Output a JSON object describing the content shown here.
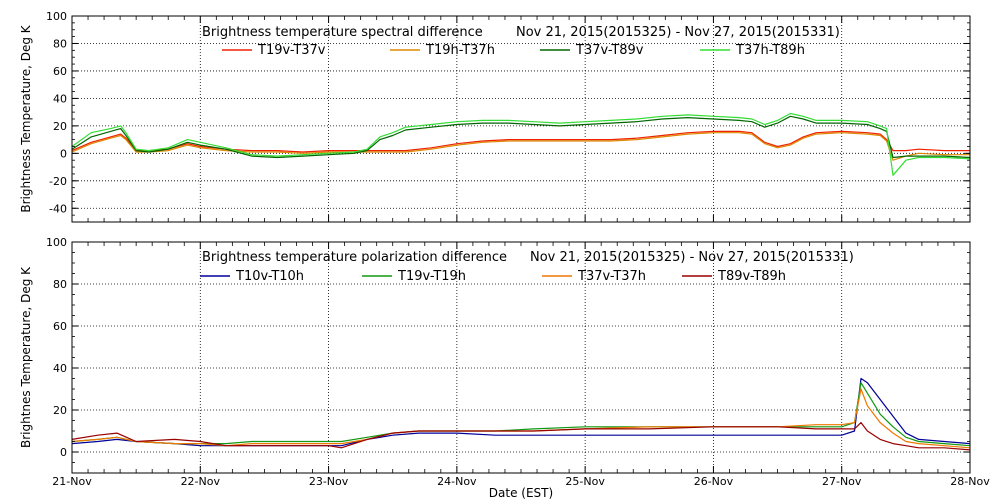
{
  "chart_data": [
    {
      "type": "line",
      "title": "Brightness temperature spectral difference",
      "date_range": "Nov 21, 2015(2015325) - Nov 27, 2015(2015331)",
      "xlabel": "",
      "ylabel": "Brightness Temperature, Deg K",
      "ylim": [
        -50,
        100
      ],
      "yticks": [
        -40,
        -20,
        0,
        20,
        40,
        60,
        80,
        100
      ],
      "xlim": [
        0,
        7
      ],
      "x_tick_positions": [
        0,
        1,
        2,
        3,
        4,
        5,
        6,
        7
      ],
      "x_tick_labels": [],
      "grid": true,
      "legend_position": "top",
      "series": [
        {
          "name": "T19v-T37v",
          "color": "#ee2200",
          "x": [
            0,
            0.15,
            0.3,
            0.38,
            0.42,
            0.5,
            0.6,
            0.75,
            0.9,
            1.0,
            1.2,
            1.4,
            1.6,
            1.8,
            2.0,
            2.2,
            2.4,
            2.6,
            2.8,
            3.0,
            3.2,
            3.4,
            3.6,
            3.8,
            4.0,
            4.2,
            4.4,
            4.6,
            4.8,
            5.0,
            5.2,
            5.3,
            5.4,
            5.5,
            5.6,
            5.7,
            5.8,
            6.0,
            6.2,
            6.3,
            6.35,
            6.4,
            6.5,
            6.6,
            6.8,
            7.0
          ],
          "y": [
            2,
            8,
            12,
            14,
            11,
            2,
            2,
            3,
            7,
            5,
            3,
            2,
            2,
            1,
            2,
            2,
            2,
            2,
            4,
            7,
            9,
            10,
            10,
            10,
            10,
            10,
            11,
            13,
            15,
            16,
            16,
            15,
            8,
            5,
            7,
            12,
            15,
            16,
            15,
            14,
            10,
            2,
            2,
            3,
            2,
            2
          ]
        },
        {
          "name": "T19h-T37h",
          "color": "#dd8800",
          "x": [
            0,
            0.15,
            0.3,
            0.38,
            0.42,
            0.5,
            0.6,
            0.75,
            0.9,
            1.0,
            1.2,
            1.4,
            1.6,
            1.8,
            2.0,
            2.2,
            2.4,
            2.6,
            2.8,
            3.0,
            3.2,
            3.4,
            3.6,
            3.8,
            4.0,
            4.2,
            4.4,
            4.6,
            4.8,
            5.0,
            5.2,
            5.3,
            5.4,
            5.5,
            5.6,
            5.7,
            5.8,
            6.0,
            6.2,
            6.3,
            6.35,
            6.4,
            6.5,
            6.6,
            6.8,
            7.0
          ],
          "y": [
            1,
            7,
            11,
            13,
            10,
            1,
            1,
            2,
            6,
            4,
            2,
            1,
            1,
            0,
            1,
            1,
            1,
            1,
            3,
            6,
            8,
            9,
            9,
            9,
            9,
            9,
            10,
            12,
            14,
            15,
            15,
            14,
            7,
            4,
            6,
            11,
            14,
            15,
            14,
            13,
            9,
            -5,
            -2,
            0,
            -1,
            -1
          ]
        },
        {
          "name": "T37v-T89v",
          "color": "#006600",
          "x": [
            0,
            0.15,
            0.3,
            0.38,
            0.42,
            0.5,
            0.6,
            0.75,
            0.9,
            1.0,
            1.2,
            1.4,
            1.6,
            1.8,
            2.0,
            2.2,
            2.3,
            2.4,
            2.5,
            2.6,
            2.8,
            3.0,
            3.2,
            3.4,
            3.6,
            3.8,
            4.0,
            4.2,
            4.4,
            4.6,
            4.8,
            5.0,
            5.2,
            5.3,
            5.4,
            5.5,
            5.6,
            5.7,
            5.8,
            6.0,
            6.2,
            6.3,
            6.35,
            6.4,
            6.5,
            6.6,
            6.8,
            7.0
          ],
          "y": [
            3,
            12,
            16,
            18,
            13,
            2,
            1,
            3,
            8,
            6,
            3,
            -2,
            -3,
            -2,
            -1,
            0,
            2,
            10,
            13,
            17,
            19,
            21,
            22,
            22,
            21,
            20,
            21,
            22,
            23,
            25,
            26,
            25,
            24,
            23,
            19,
            22,
            27,
            25,
            22,
            22,
            21,
            18,
            16,
            -3,
            -2,
            -2,
            -2,
            -3
          ]
        },
        {
          "name": "T37h-T89h",
          "color": "#33dd33",
          "x": [
            0,
            0.15,
            0.3,
            0.38,
            0.42,
            0.5,
            0.6,
            0.75,
            0.9,
            1.0,
            1.2,
            1.4,
            1.6,
            1.8,
            2.0,
            2.2,
            2.3,
            2.4,
            2.5,
            2.6,
            2.8,
            3.0,
            3.2,
            3.4,
            3.6,
            3.8,
            4.0,
            4.2,
            4.4,
            4.6,
            4.8,
            5.0,
            5.2,
            5.3,
            5.4,
            5.5,
            5.6,
            5.7,
            5.8,
            6.0,
            6.2,
            6.3,
            6.35,
            6.4,
            6.5,
            6.6,
            6.8,
            7.0
          ],
          "y": [
            5,
            15,
            18,
            20,
            15,
            3,
            2,
            4,
            10,
            8,
            4,
            -1,
            -2,
            -1,
            0,
            1,
            3,
            12,
            15,
            19,
            21,
            23,
            24,
            24,
            23,
            22,
            23,
            24,
            25,
            27,
            28,
            27,
            26,
            25,
            21,
            24,
            29,
            27,
            24,
            24,
            23,
            20,
            18,
            -16,
            -5,
            -3,
            -3,
            -4
          ]
        }
      ]
    },
    {
      "type": "line",
      "title": "Brightness temperature polarization difference",
      "date_range": "Nov 21, 2015(2015325) - Nov 27, 2015(2015331)",
      "xlabel": "Date (EST)",
      "ylabel": "Brightnes Temperature, Deg K",
      "ylim": [
        -10,
        100
      ],
      "yticks": [
        0,
        20,
        40,
        60,
        80,
        100
      ],
      "xlim": [
        0,
        7
      ],
      "x_tick_positions": [
        0,
        1,
        2,
        3,
        4,
        5,
        6,
        7
      ],
      "x_tick_labels": [
        "21-Nov",
        "22-Nov",
        "23-Nov",
        "24-Nov",
        "25-Nov",
        "26-Nov",
        "27-Nov",
        "28-Nov"
      ],
      "grid": true,
      "legend_position": "top",
      "series": [
        {
          "name": "T10v-T10h",
          "color": "#000099",
          "x": [
            0,
            0.2,
            0.35,
            0.5,
            0.8,
            1.0,
            1.2,
            1.4,
            1.6,
            1.8,
            2.0,
            2.1,
            2.3,
            2.5,
            2.7,
            3.0,
            3.3,
            3.6,
            4.0,
            4.5,
            5.0,
            5.5,
            5.8,
            6.0,
            6.1,
            6.15,
            6.2,
            6.3,
            6.4,
            6.5,
            6.6,
            6.8,
            7.0
          ],
          "y": [
            4,
            5,
            6,
            5,
            4,
            3,
            3,
            3,
            3,
            3,
            3,
            3,
            6,
            8,
            9,
            9,
            8,
            8,
            8,
            8,
            8,
            8,
            8,
            8,
            10,
            35,
            33,
            25,
            17,
            9,
            6,
            5,
            4
          ]
        },
        {
          "name": "T19v-T19h",
          "color": "#119911",
          "x": [
            0,
            0.2,
            0.35,
            0.5,
            0.8,
            1.0,
            1.2,
            1.4,
            1.6,
            1.8,
            2.0,
            2.1,
            2.3,
            2.5,
            2.7,
            3.0,
            3.3,
            3.6,
            4.0,
            4.5,
            5.0,
            5.5,
            5.8,
            6.0,
            6.1,
            6.15,
            6.2,
            6.3,
            6.4,
            6.5,
            6.6,
            6.8,
            7.0
          ],
          "y": [
            5,
            6,
            7,
            5,
            4,
            4,
            4,
            5,
            5,
            5,
            5,
            5,
            7,
            9,
            10,
            10,
            10,
            11,
            12,
            12,
            12,
            12,
            12,
            12,
            14,
            33,
            28,
            18,
            12,
            7,
            5,
            4,
            3
          ]
        },
        {
          "name": "T37v-T37h",
          "color": "#ee7700",
          "x": [
            0,
            0.2,
            0.35,
            0.5,
            0.8,
            1.0,
            1.2,
            1.4,
            1.6,
            1.8,
            2.0,
            2.1,
            2.3,
            2.5,
            2.7,
            3.0,
            3.3,
            3.6,
            4.0,
            4.5,
            5.0,
            5.5,
            5.8,
            6.0,
            6.1,
            6.15,
            6.2,
            6.3,
            6.4,
            6.5,
            6.6,
            6.8,
            7.0
          ],
          "y": [
            5,
            6,
            7,
            5,
            4,
            4,
            3,
            4,
            4,
            4,
            4,
            4,
            6,
            9,
            10,
            10,
            10,
            10,
            11,
            12,
            12,
            12,
            13,
            13,
            14,
            30,
            22,
            14,
            9,
            5,
            4,
            3,
            2
          ]
        },
        {
          "name": "T89v-T89h",
          "color": "#990000",
          "x": [
            0,
            0.2,
            0.35,
            0.5,
            0.8,
            1.0,
            1.2,
            1.4,
            1.6,
            1.8,
            2.0,
            2.1,
            2.3,
            2.5,
            2.7,
            3.0,
            3.3,
            3.6,
            4.0,
            4.5,
            5.0,
            5.5,
            5.8,
            6.0,
            6.1,
            6.15,
            6.2,
            6.3,
            6.4,
            6.5,
            6.6,
            6.8,
            7.0
          ],
          "y": [
            6,
            8,
            9,
            5,
            6,
            5,
            3,
            3,
            3,
            3,
            3,
            2,
            6,
            9,
            10,
            10,
            10,
            10,
            11,
            11,
            12,
            12,
            11,
            11,
            11,
            14,
            10,
            6,
            4,
            3,
            2,
            2,
            1
          ]
        }
      ]
    }
  ]
}
